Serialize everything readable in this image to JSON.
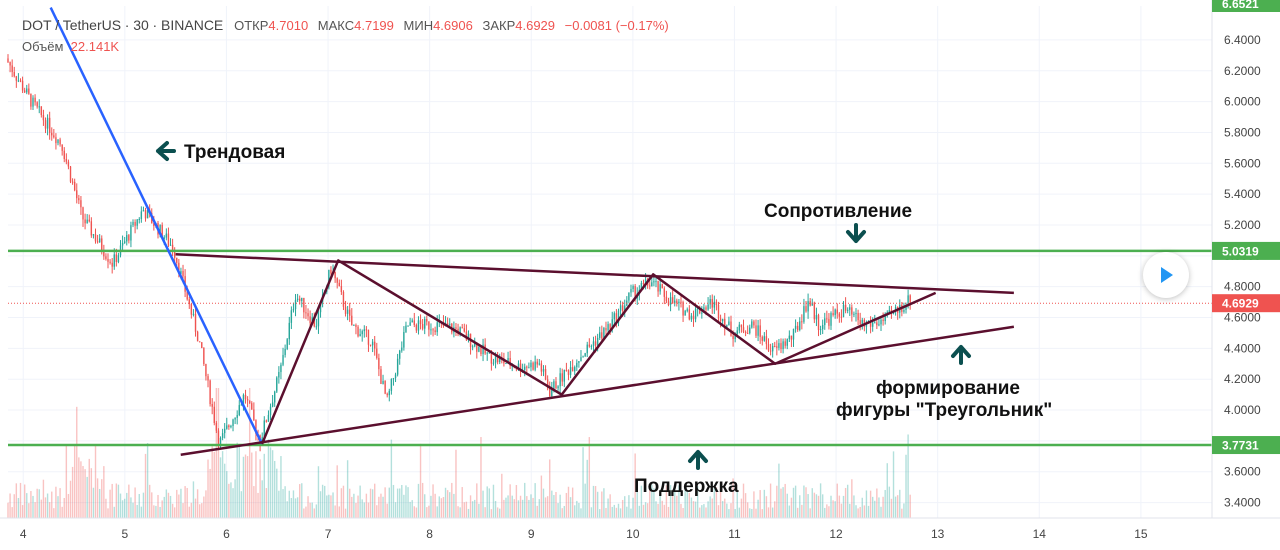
{
  "header": {
    "symbol": "DOT / TetherUS",
    "interval": "30",
    "exchange": "BINANCE",
    "open_label": "ОТКР",
    "open_value": "4.7010",
    "high_label": "МАКС",
    "high_value": "4.7199",
    "low_label": "МИН",
    "low_value": "4.6906",
    "close_label": "ЗАКР",
    "close_value": "4.6929",
    "change": "−0.0081 (−0.17%)",
    "volume_label": "Объём",
    "volume_value": "22.141K"
  },
  "annotations": {
    "trend": "Трендовая",
    "resistance": "Сопротивление",
    "support": "Поддержка",
    "triangle_line1": "формирование",
    "triangle_line2": "фигуры \"Треугольник\""
  },
  "price_tags": {
    "resistance": "5.0319",
    "current": "4.6929",
    "support": "3.7731",
    "top_partial": "6.6521"
  },
  "colors": {
    "up": "#26a69a",
    "down": "#ef5350",
    "level_line": "#4caf50",
    "pattern_line": "#5b0f2e",
    "trend_line": "#2962ff",
    "arrow": "#0b4f4f",
    "current_price": "#ef5350"
  },
  "play_button": {
    "icon": "play-icon"
  },
  "chart_data": {
    "type": "candlestick",
    "title": "DOT / TetherUS · 30 · BINANCE",
    "xlabel": "",
    "ylabel": "",
    "x_ticks": [
      "4",
      "5",
      "6",
      "7",
      "8",
      "9",
      "10",
      "11",
      "12",
      "13",
      "14",
      "15"
    ],
    "y_ticks": [
      "3.4000",
      "3.6000",
      "3.8000",
      "4.0000",
      "4.2000",
      "4.4000",
      "4.6000",
      "4.8000",
      "5.0000",
      "5.2000",
      "5.4000",
      "5.6000",
      "5.8000",
      "6.0000",
      "6.2000",
      "6.4000"
    ],
    "xlim": [
      3.85,
      15.7
    ],
    "ylim": [
      3.3,
      6.62
    ],
    "grid": true,
    "candle_path": [
      [
        3.85,
        6.28
      ],
      [
        4.1,
        6.0
      ],
      [
        4.4,
        5.72
      ],
      [
        4.6,
        5.25
      ],
      [
        4.9,
        4.95
      ],
      [
        5.2,
        5.3
      ],
      [
        5.5,
        5.05
      ],
      [
        5.75,
        4.45
      ],
      [
        5.95,
        3.78
      ],
      [
        6.2,
        4.1
      ],
      [
        6.35,
        3.8
      ],
      [
        6.55,
        4.25
      ],
      [
        6.7,
        4.75
      ],
      [
        6.9,
        4.55
      ],
      [
        7.05,
        4.92
      ],
      [
        7.25,
        4.55
      ],
      [
        7.45,
        4.45
      ],
      [
        7.6,
        4.05
      ],
      [
        7.8,
        4.55
      ],
      [
        8.1,
        4.55
      ],
      [
        8.3,
        4.52
      ],
      [
        8.6,
        4.35
      ],
      [
        8.9,
        4.28
      ],
      [
        9.1,
        4.3
      ],
      [
        9.2,
        4.12
      ],
      [
        9.5,
        4.35
      ],
      [
        9.8,
        4.55
      ],
      [
        10.0,
        4.75
      ],
      [
        10.2,
        4.83
      ],
      [
        10.4,
        4.7
      ],
      [
        10.6,
        4.62
      ],
      [
        10.8,
        4.7
      ],
      [
        11.0,
        4.5
      ],
      [
        11.2,
        4.55
      ],
      [
        11.4,
        4.38
      ],
      [
        11.6,
        4.48
      ],
      [
        11.75,
        4.72
      ],
      [
        11.85,
        4.55
      ],
      [
        12.1,
        4.65
      ],
      [
        12.3,
        4.55
      ],
      [
        12.5,
        4.58
      ],
      [
        12.75,
        4.72
      ]
    ],
    "levels": [
      {
        "name": "resistance",
        "value": 5.0319
      },
      {
        "name": "support",
        "value": 3.7731
      },
      {
        "name": "current",
        "value": 4.6929
      }
    ],
    "trend_line": [
      [
        4.27,
        6.61
      ],
      [
        6.35,
        3.78
      ]
    ],
    "triangle_upper": [
      [
        5.5,
        5.01
      ],
      [
        13.75,
        4.76
      ]
    ],
    "triangle_lower": [
      [
        5.55,
        3.71
      ],
      [
        13.75,
        4.54
      ]
    ],
    "zigzag": [
      [
        6.35,
        3.78
      ],
      [
        7.1,
        4.97
      ],
      [
        9.3,
        4.1
      ],
      [
        10.2,
        4.88
      ],
      [
        11.4,
        4.3
      ],
      [
        12.98,
        4.76
      ]
    ],
    "volume_ylim": [
      0,
      2.2
    ]
  }
}
